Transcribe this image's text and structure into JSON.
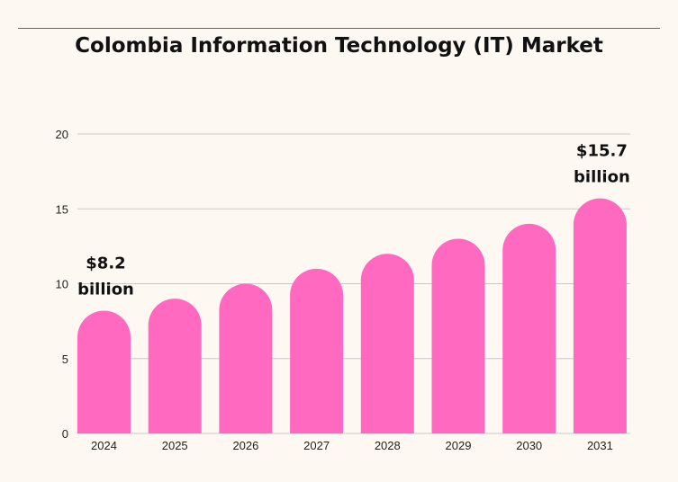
{
  "chart_data": {
    "type": "bar",
    "title": "Colombia Information Technology (IT) Market",
    "categories": [
      "2024",
      "2025",
      "2026",
      "2027",
      "2028",
      "2029",
      "2030",
      "2031"
    ],
    "values": [
      8.2,
      9,
      10,
      11,
      12,
      13,
      14,
      15.7
    ],
    "ylim": [
      0,
      20
    ],
    "yticks": [
      0,
      5,
      10,
      15,
      20
    ],
    "grid": true,
    "bar_color": "#ff69c0",
    "annotations": [
      {
        "category": "2024",
        "lines": [
          "$8.2",
          "billion"
        ]
      },
      {
        "category": "2031",
        "lines": [
          "$15.7",
          "billion"
        ]
      }
    ]
  }
}
